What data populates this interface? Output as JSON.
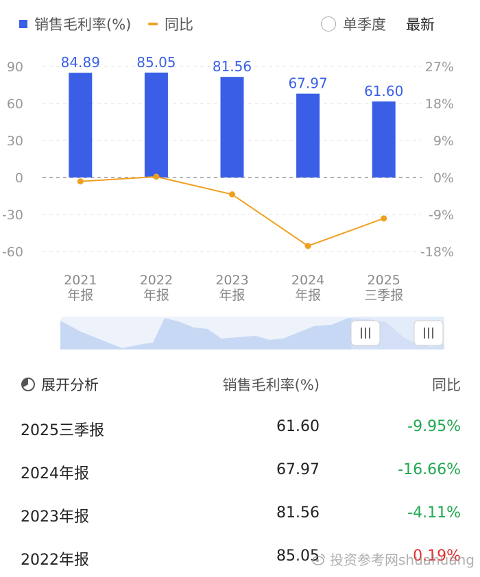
{
  "legend": {
    "bar_label": "销售毛利率(%)",
    "line_label": "同比",
    "single_quarter": "单季度",
    "latest": "最新"
  },
  "colors": {
    "bar": "#3a5fe6",
    "line": "#f0a020",
    "negative": "#1fa84f",
    "positive": "#e03030"
  },
  "chart_data": {
    "type": "bar+line",
    "categories": [
      "2021\n年报",
      "2022\n年报",
      "2023\n年报",
      "2024\n年报",
      "2025\n三季报"
    ],
    "series": [
      {
        "name": "销售毛利率(%)",
        "type": "bar",
        "axis": "left",
        "values": [
          84.89,
          85.05,
          81.56,
          67.97,
          61.6
        ]
      },
      {
        "name": "同比",
        "type": "line",
        "axis": "right",
        "values": [
          -0.95,
          0.19,
          -4.11,
          -16.66,
          -9.95
        ]
      }
    ],
    "left_axis": {
      "ticks": [
        "90",
        "60",
        "30",
        "0",
        "-30",
        "-60"
      ],
      "range": [
        -60,
        90
      ]
    },
    "right_axis": {
      "ticks": [
        "27%",
        "18%",
        "9%",
        "0%",
        "-9%",
        "-18%"
      ],
      "range": [
        -18,
        27
      ]
    },
    "data_labels": [
      "84.89",
      "85.05",
      "81.56",
      "67.97",
      "61.60"
    ],
    "grid": true
  },
  "table": {
    "header": {
      "col1": "展开分析",
      "col2": "销售毛利率(%)",
      "col3": "同比"
    },
    "rows": [
      {
        "period": "2025三季报",
        "value": "61.60",
        "yoy": "-9.95%",
        "sign": "neg"
      },
      {
        "period": "2024年报",
        "value": "67.97",
        "yoy": "-16.66%",
        "sign": "neg"
      },
      {
        "period": "2023年报",
        "value": "81.56",
        "yoy": "-4.11%",
        "sign": "neg"
      },
      {
        "period": "2022年报",
        "value": "85.05",
        "yoy": "0.19%",
        "sign": "pos"
      }
    ]
  },
  "watermark": "投资参考网shuahuang"
}
